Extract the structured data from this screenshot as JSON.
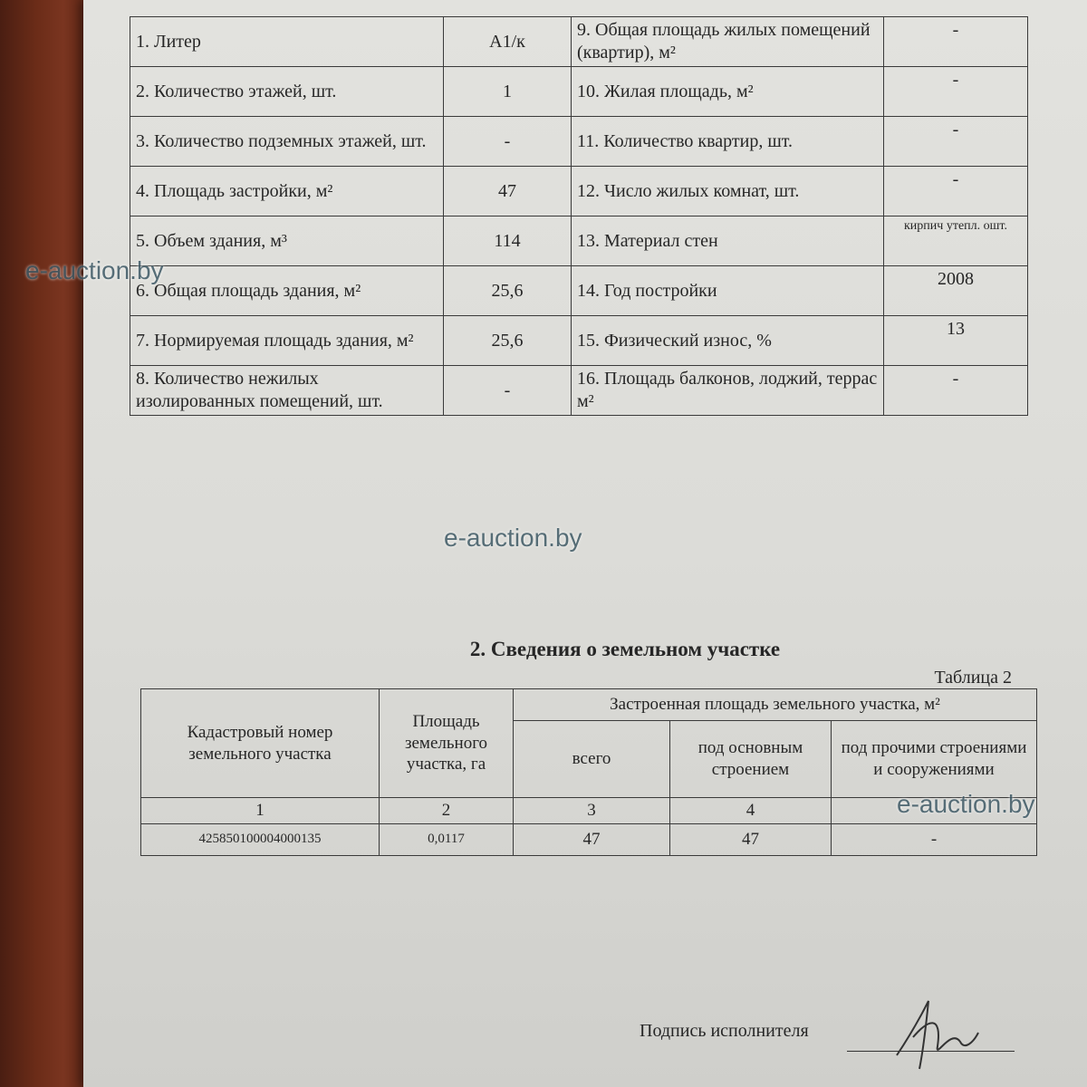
{
  "table1": {
    "rows": [
      {
        "label_l": "1. Литер",
        "value_l": "А1/к",
        "label_r": "9. Общая площадь жилых помещений (квартир), м²",
        "value_r": "-"
      },
      {
        "label_l": "2. Количество этажей, шт.",
        "value_l": "1",
        "label_r": "10. Жилая площадь, м²",
        "value_r": "-"
      },
      {
        "label_l": "3. Количество подземных этажей, шт.",
        "value_l": "-",
        "label_r": "11. Количество квартир, шт.",
        "value_r": "-"
      },
      {
        "label_l": "4. Площадь застройки, м²",
        "value_l": "47",
        "label_r": "12. Число жилых комнат, шт.",
        "value_r": "-"
      },
      {
        "label_l": "5. Объем здания, м³",
        "value_l": "114",
        "label_r": "13. Материал стен",
        "value_r": "кирпич утепл. ошт."
      },
      {
        "label_l": "6. Общая площадь здания, м²",
        "value_l": "25,6",
        "label_r": "14. Год постройки",
        "value_r": "2008"
      },
      {
        "label_l": "7. Нормируемая площадь здания, м²",
        "value_l": "25,6",
        "label_r": "15. Физический износ, %",
        "value_r": "13"
      },
      {
        "label_l": "8. Количество нежилых изолированных помещений, шт.",
        "value_l": "-",
        "label_r": "16. Площадь балконов, лоджий, террас м²",
        "value_r": "-"
      }
    ]
  },
  "section2": {
    "heading": "2. Сведения о земельном участке",
    "table_label": "Таблица 2",
    "headers": {
      "cadastral": "Кадастровый номер земельного участка",
      "area": "Площадь земельного участка, га",
      "built_area": "Застроенная площадь земельного участка, м²",
      "total": "всего",
      "main": "под основным строением",
      "other": "под прочими строениями и сооружениями"
    },
    "column_numbers": [
      "1",
      "2",
      "3",
      "4"
    ],
    "row": {
      "cadastral": "425850100004000135",
      "area": "0,0117",
      "total": "47",
      "main": "47",
      "other": "-"
    }
  },
  "signature": {
    "label": "Подпись исполнителя"
  },
  "watermark": "e-auction.by"
}
